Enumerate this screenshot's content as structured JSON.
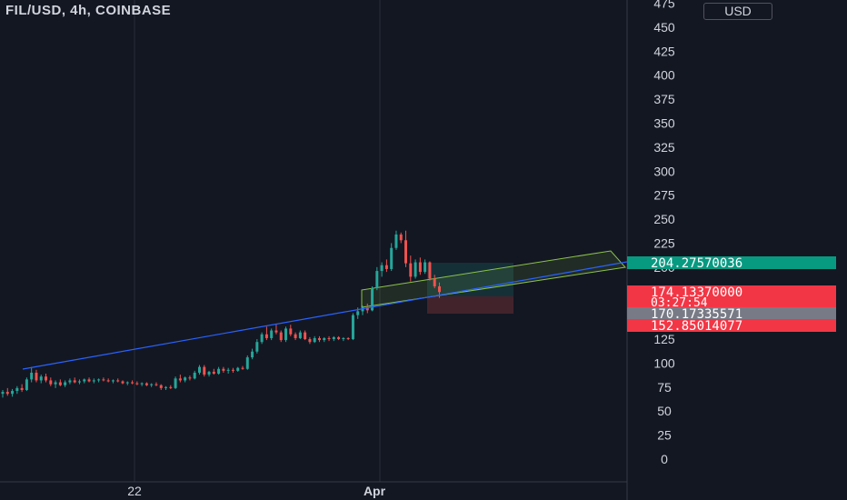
{
  "header": {
    "symbol": "FIL/USD, 4h, COINBASE",
    "currency_button": "USD"
  },
  "colors": {
    "background": "#131722",
    "up": "#26a69a",
    "down": "#ef5350",
    "trendline": "#2962ff",
    "channel": "#8bc34a",
    "price_tag_green": "#089981",
    "price_tag_red": "#f23645",
    "price_tag_gray": "#787b86",
    "axis_text": "#d1d4dc"
  },
  "chart_data": {
    "type": "candlestick",
    "title": "FIL/USD, 4h, COINBASE",
    "y_ticks": [
      475,
      450,
      425,
      400,
      375,
      350,
      325,
      300,
      275,
      250,
      225,
      200,
      175,
      150,
      125,
      100,
      75,
      50,
      25,
      0
    ],
    "x_ticks": [
      "22",
      "Apr"
    ],
    "price_tags": [
      {
        "label": "204.27570036",
        "value": 204.28,
        "color": "green"
      },
      {
        "label": "174.13370000",
        "sublabel": "03:27:54",
        "value": 174.13,
        "color": "red"
      },
      {
        "label": "170.17335571",
        "value": 170.17,
        "color": "gray"
      },
      {
        "label": "152.85014077",
        "value": 152.85,
        "color": "red"
      }
    ],
    "ohlc": [
      {
        "o": 68,
        "h": 72,
        "l": 64,
        "c": 70
      },
      {
        "o": 70,
        "h": 74,
        "l": 66,
        "c": 68
      },
      {
        "o": 68,
        "h": 73,
        "l": 65,
        "c": 71
      },
      {
        "o": 71,
        "h": 76,
        "l": 68,
        "c": 74
      },
      {
        "o": 74,
        "h": 78,
        "l": 70,
        "c": 72
      },
      {
        "o": 72,
        "h": 85,
        "l": 71,
        "c": 83
      },
      {
        "o": 83,
        "h": 96,
        "l": 80,
        "c": 90
      },
      {
        "o": 90,
        "h": 93,
        "l": 80,
        "c": 82
      },
      {
        "o": 82,
        "h": 88,
        "l": 79,
        "c": 86
      },
      {
        "o": 86,
        "h": 89,
        "l": 80,
        "c": 82
      },
      {
        "o": 82,
        "h": 85,
        "l": 76,
        "c": 78
      },
      {
        "o": 78,
        "h": 82,
        "l": 74,
        "c": 80
      },
      {
        "o": 80,
        "h": 83,
        "l": 76,
        "c": 77
      },
      {
        "o": 77,
        "h": 82,
        "l": 75,
        "c": 80
      },
      {
        "o": 80,
        "h": 84,
        "l": 78,
        "c": 82
      },
      {
        "o": 82,
        "h": 85,
        "l": 79,
        "c": 80
      },
      {
        "o": 80,
        "h": 83,
        "l": 78,
        "c": 81
      },
      {
        "o": 81,
        "h": 84,
        "l": 79,
        "c": 83
      },
      {
        "o": 83,
        "h": 85,
        "l": 80,
        "c": 81
      },
      {
        "o": 81,
        "h": 84,
        "l": 79,
        "c": 82
      },
      {
        "o": 82,
        "h": 84,
        "l": 80,
        "c": 83
      },
      {
        "o": 83,
        "h": 85,
        "l": 81,
        "c": 82
      },
      {
        "o": 82,
        "h": 84,
        "l": 80,
        "c": 81
      },
      {
        "o": 81,
        "h": 83,
        "l": 79,
        "c": 82
      },
      {
        "o": 82,
        "h": 84,
        "l": 80,
        "c": 81
      },
      {
        "o": 81,
        "h": 82,
        "l": 78,
        "c": 79
      },
      {
        "o": 79,
        "h": 81,
        "l": 77,
        "c": 80
      },
      {
        "o": 80,
        "h": 82,
        "l": 78,
        "c": 79
      },
      {
        "o": 79,
        "h": 81,
        "l": 77,
        "c": 78
      },
      {
        "o": 78,
        "h": 80,
        "l": 76,
        "c": 79
      },
      {
        "o": 79,
        "h": 80,
        "l": 76,
        "c": 77
      },
      {
        "o": 77,
        "h": 79,
        "l": 75,
        "c": 78
      },
      {
        "o": 78,
        "h": 80,
        "l": 76,
        "c": 77
      },
      {
        "o": 77,
        "h": 78,
        "l": 72,
        "c": 74
      },
      {
        "o": 74,
        "h": 76,
        "l": 72,
        "c": 75
      },
      {
        "o": 75,
        "h": 77,
        "l": 73,
        "c": 74
      },
      {
        "o": 74,
        "h": 86,
        "l": 73,
        "c": 84
      },
      {
        "o": 84,
        "h": 88,
        "l": 80,
        "c": 82
      },
      {
        "o": 82,
        "h": 86,
        "l": 80,
        "c": 85
      },
      {
        "o": 85,
        "h": 87,
        "l": 82,
        "c": 84
      },
      {
        "o": 84,
        "h": 92,
        "l": 83,
        "c": 90
      },
      {
        "o": 90,
        "h": 98,
        "l": 88,
        "c": 96
      },
      {
        "o": 96,
        "h": 98,
        "l": 86,
        "c": 88
      },
      {
        "o": 88,
        "h": 92,
        "l": 86,
        "c": 91
      },
      {
        "o": 91,
        "h": 94,
        "l": 88,
        "c": 89
      },
      {
        "o": 89,
        "h": 96,
        "l": 88,
        "c": 94
      },
      {
        "o": 94,
        "h": 96,
        "l": 90,
        "c": 92
      },
      {
        "o": 92,
        "h": 95,
        "l": 89,
        "c": 93
      },
      {
        "o": 93,
        "h": 95,
        "l": 90,
        "c": 92
      },
      {
        "o": 92,
        "h": 96,
        "l": 91,
        "c": 95
      },
      {
        "o": 95,
        "h": 97,
        "l": 93,
        "c": 94
      },
      {
        "o": 94,
        "h": 108,
        "l": 93,
        "c": 106
      },
      {
        "o": 106,
        "h": 115,
        "l": 104,
        "c": 112
      },
      {
        "o": 112,
        "h": 125,
        "l": 110,
        "c": 122
      },
      {
        "o": 122,
        "h": 132,
        "l": 120,
        "c": 130
      },
      {
        "o": 130,
        "h": 138,
        "l": 124,
        "c": 126
      },
      {
        "o": 126,
        "h": 136,
        "l": 124,
        "c": 134
      },
      {
        "o": 134,
        "h": 140,
        "l": 130,
        "c": 132
      },
      {
        "o": 132,
        "h": 134,
        "l": 122,
        "c": 124
      },
      {
        "o": 124,
        "h": 138,
        "l": 122,
        "c": 136
      },
      {
        "o": 136,
        "h": 140,
        "l": 128,
        "c": 130
      },
      {
        "o": 130,
        "h": 132,
        "l": 124,
        "c": 126
      },
      {
        "o": 126,
        "h": 134,
        "l": 125,
        "c": 132
      },
      {
        "o": 132,
        "h": 134,
        "l": 124,
        "c": 125
      },
      {
        "o": 125,
        "h": 127,
        "l": 120,
        "c": 122
      },
      {
        "o": 122,
        "h": 128,
        "l": 121,
        "c": 126
      },
      {
        "o": 126,
        "h": 128,
        "l": 122,
        "c": 124
      },
      {
        "o": 124,
        "h": 127,
        "l": 122,
        "c": 126
      },
      {
        "o": 126,
        "h": 128,
        "l": 123,
        "c": 125
      },
      {
        "o": 125,
        "h": 128,
        "l": 123,
        "c": 127
      },
      {
        "o": 127,
        "h": 128,
        "l": 124,
        "c": 125
      },
      {
        "o": 125,
        "h": 127,
        "l": 123,
        "c": 126
      },
      {
        "o": 126,
        "h": 127,
        "l": 124,
        "c": 125
      },
      {
        "o": 125,
        "h": 152,
        "l": 124,
        "c": 150
      },
      {
        "o": 150,
        "h": 158,
        "l": 146,
        "c": 154
      },
      {
        "o": 154,
        "h": 160,
        "l": 150,
        "c": 158
      },
      {
        "o": 158,
        "h": 162,
        "l": 152,
        "c": 155
      },
      {
        "o": 155,
        "h": 180,
        "l": 154,
        "c": 178
      },
      {
        "o": 178,
        "h": 200,
        "l": 176,
        "c": 196
      },
      {
        "o": 196,
        "h": 205,
        "l": 190,
        "c": 202
      },
      {
        "o": 202,
        "h": 208,
        "l": 195,
        "c": 198
      },
      {
        "o": 198,
        "h": 225,
        "l": 196,
        "c": 220
      },
      {
        "o": 220,
        "h": 238,
        "l": 218,
        "c": 234
      },
      {
        "o": 234,
        "h": 236,
        "l": 225,
        "c": 228
      },
      {
        "o": 228,
        "h": 238,
        "l": 200,
        "c": 204
      },
      {
        "o": 204,
        "h": 212,
        "l": 185,
        "c": 190
      },
      {
        "o": 190,
        "h": 208,
        "l": 188,
        "c": 205
      },
      {
        "o": 205,
        "h": 210,
        "l": 192,
        "c": 195
      },
      {
        "o": 195,
        "h": 208,
        "l": 193,
        "c": 205
      },
      {
        "o": 205,
        "h": 206,
        "l": 186,
        "c": 188
      },
      {
        "o": 188,
        "h": 192,
        "l": 178,
        "c": 180
      },
      {
        "o": 180,
        "h": 184,
        "l": 168,
        "c": 174
      }
    ]
  }
}
